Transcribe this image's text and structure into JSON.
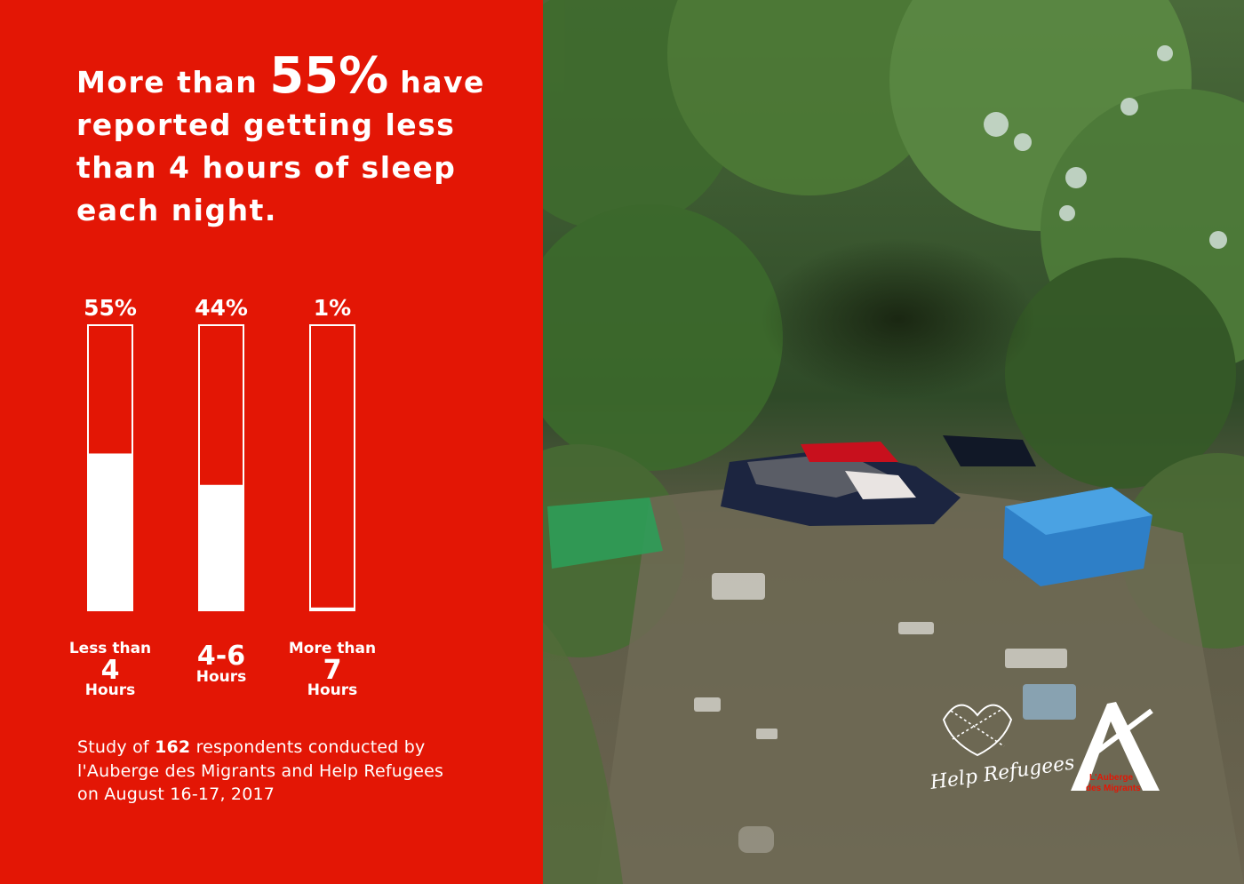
{
  "headline": {
    "prefix": "More than",
    "highlight": "55%",
    "suffix": "have reported getting less than",
    "emphasis": "4 hours of sleep",
    "end": "each night."
  },
  "chart_data": {
    "type": "bar",
    "categories": [
      "Less than 4 Hours",
      "4-6 Hours",
      "More than 7 Hours"
    ],
    "values": [
      55,
      44,
      1
    ],
    "value_labels": [
      "55%",
      "44%",
      "1%"
    ],
    "ylim": [
      0,
      100
    ],
    "category_labels": [
      {
        "top": "Less than",
        "number": "4",
        "unit": "Hours"
      },
      {
        "top": "",
        "number": "4-6",
        "unit": "Hours"
      },
      {
        "top": "More than",
        "number": "7",
        "unit": "Hours"
      }
    ]
  },
  "footnote": {
    "part1": "Study of ",
    "count": "162",
    "part2": " respondents conducted by l'Auberge des Migrants  and Help Refugees on August 16-17, 2017"
  },
  "logos": {
    "help_refugees": "Help Refugees",
    "auberge_line1": "L'Auberge",
    "auberge_line2": "des Migrants"
  },
  "colors": {
    "panel_red": "#e31605",
    "bar_fill": "#ffffff",
    "text": "#ffffff"
  }
}
